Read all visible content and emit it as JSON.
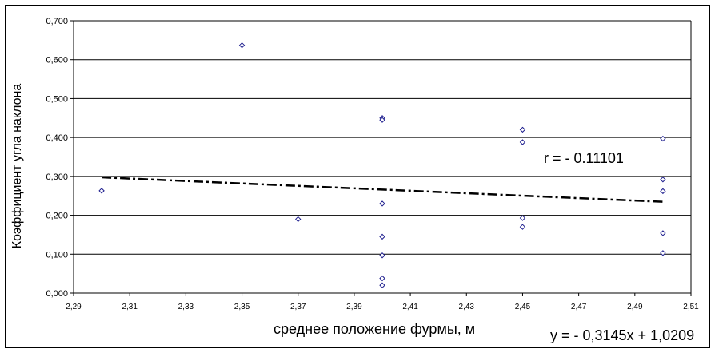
{
  "chart_data": {
    "type": "scatter",
    "title": "",
    "xlabel": "среднее  положение фурмы, м",
    "ylabel": "Коэффициент угла наклона",
    "xlim": [
      2.29,
      2.51
    ],
    "ylim": [
      0.0,
      0.7
    ],
    "x_ticks": [
      "2,29",
      "2,31",
      "2,33",
      "2,35",
      "2,37",
      "2,39",
      "2,41",
      "2,43",
      "2,45",
      "2,47",
      "2,49",
      "2,51"
    ],
    "y_ticks": [
      "0,000",
      "0,100",
      "0,200",
      "0,300",
      "0,400",
      "0,500",
      "0,600",
      "0,700"
    ],
    "grid": "horizontal",
    "points": [
      {
        "x": 2.3,
        "y": 0.263
      },
      {
        "x": 2.35,
        "y": 0.637
      },
      {
        "x": 2.37,
        "y": 0.19
      },
      {
        "x": 2.4,
        "y": 0.45
      },
      {
        "x": 2.4,
        "y": 0.445
      },
      {
        "x": 2.4,
        "y": 0.23
      },
      {
        "x": 2.4,
        "y": 0.145
      },
      {
        "x": 2.4,
        "y": 0.097
      },
      {
        "x": 2.4,
        "y": 0.038
      },
      {
        "x": 2.4,
        "y": 0.02
      },
      {
        "x": 2.45,
        "y": 0.42
      },
      {
        "x": 2.45,
        "y": 0.388
      },
      {
        "x": 2.45,
        "y": 0.193
      },
      {
        "x": 2.45,
        "y": 0.17
      },
      {
        "x": 2.5,
        "y": 0.397
      },
      {
        "x": 2.5,
        "y": 0.292
      },
      {
        "x": 2.5,
        "y": 0.262
      },
      {
        "x": 2.5,
        "y": 0.154
      },
      {
        "x": 2.5,
        "y": 0.103
      }
    ],
    "trendline": {
      "slope": -0.3145,
      "intercept": 1.0209,
      "x_from": 2.3,
      "x_to": 2.5,
      "style": "dash-dot"
    },
    "equation_label": "y = - 0,3145x + 1,0209",
    "r_label": "r = - 0.11101",
    "colors": {
      "marker": "#1f1f8f",
      "grid": "#000000",
      "trend": "#000000"
    }
  }
}
